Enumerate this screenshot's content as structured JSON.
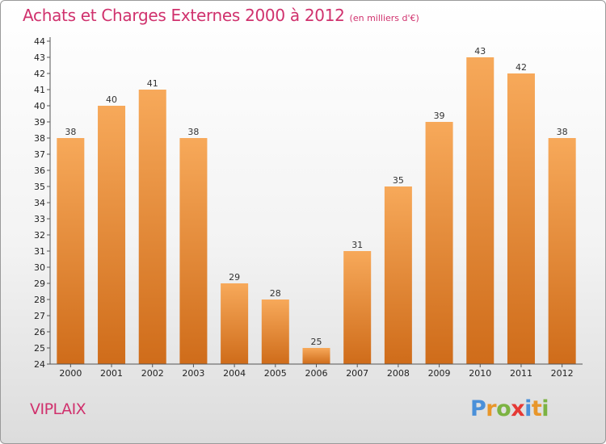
{
  "title": "Achats et Charges Externes 2000 à 2012",
  "unit": "(en milliers d'€)",
  "commune": "VIPLAIX",
  "logo": {
    "letters": [
      "P",
      "r",
      "o",
      "x",
      "i",
      "t",
      "i"
    ],
    "colors": [
      "#4a90d9",
      "#e8962a",
      "#7cb342",
      "#e53935",
      "#4a90d9",
      "#e8962a",
      "#7cb342"
    ]
  },
  "colors": {
    "title": "#d0316d",
    "bar_top": "#f7a95a",
    "bar_bottom": "#cf6c1a"
  },
  "chart_data": {
    "type": "bar",
    "categories": [
      "2000",
      "2001",
      "2002",
      "2003",
      "2004",
      "2005",
      "2006",
      "2007",
      "2008",
      "2009",
      "2010",
      "2011",
      "2012"
    ],
    "values": [
      38,
      40,
      41,
      38,
      29,
      28,
      25,
      31,
      35,
      39,
      43,
      42,
      38
    ],
    "title": "Achats et Charges Externes 2000 à 2012",
    "xlabel": "",
    "ylabel": "",
    "ylim": [
      24,
      44
    ],
    "yticks": [
      24,
      25,
      26,
      27,
      28,
      29,
      30,
      31,
      32,
      33,
      34,
      35,
      36,
      37,
      38,
      39,
      40,
      41,
      42,
      43,
      44
    ],
    "grid": false,
    "legend": "none"
  }
}
